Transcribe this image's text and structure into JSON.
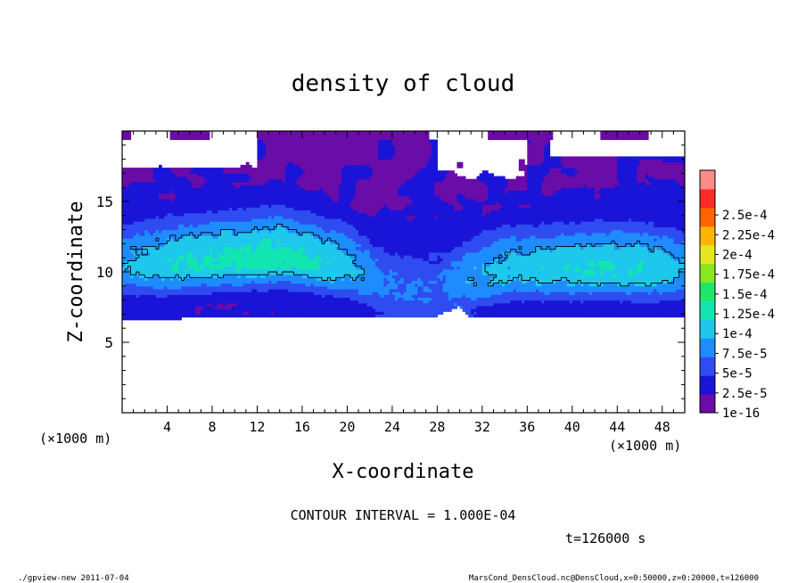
{
  "chart_data": {
    "type": "heatmap",
    "title": "density of cloud",
    "xlabel": "X-coordinate",
    "ylabel": "Z-coordinate",
    "x_unit": "(×1000 m)",
    "xlim": [
      0,
      50
    ],
    "ylim": [
      0,
      20
    ],
    "x_ticks": [
      "4",
      "8",
      "12",
      "16",
      "20",
      "24",
      "28",
      "32",
      "36",
      "40",
      "44",
      "48"
    ],
    "y_ticks": [
      "5",
      "10",
      "15"
    ],
    "colorbar": {
      "labels": [
        "1e-16",
        "2.5e-5",
        "5e-5",
        "7.5e-5",
        "1e-4",
        "1.25e-4",
        "1.5e-4",
        "1.75e-4",
        "2e-4",
        "2.25e-4",
        "2.5e-4"
      ],
      "colors": [
        "#6a0ca8",
        "#1a14d8",
        "#2e4cf0",
        "#1e8cff",
        "#1ec8ec",
        "#12e6b0",
        "#1ee66a",
        "#8ae61e",
        "#e6e61e",
        "#ffb400",
        "#ff6400",
        "#ff2a2a",
        "#ff8a8a"
      ]
    },
    "contour_level": 0.0001,
    "contour_note": "CONTOUR INTERVAL = 1.000E-04",
    "time_note": "t=126000 s"
  },
  "footer": {
    "left": "./gpview-new  2011-07-04",
    "right": "MarsCond_DensCloud.nc@DensCloud,x=0:50000,z=0:20000,t=126000"
  }
}
